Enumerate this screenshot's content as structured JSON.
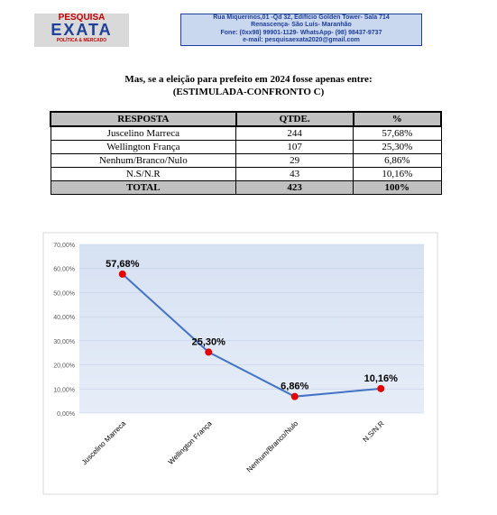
{
  "header": {
    "logo_top": "PESQUISA",
    "logo_main": "EXATA",
    "logo_sub": "POLÍTICA & MERCADO",
    "info": [
      "Rua Miquerinos,01 -Qd 32, Edifício Golden Tower- Sala 714",
      "Renascença- São Luís- Maranhão",
      "Fone: (0xx98) 99901-1129- WhatsApp- (98) 98437-9737",
      "e-mail: pesquisaexata2020@gmail.com"
    ]
  },
  "question": [
    "Mas, se a eleição para prefeito em 2024 fosse apenas entre:",
    "(ESTIMULADA-CONFRONTO C)"
  ],
  "table": {
    "header": [
      "RESPOSTA",
      "QTDE.",
      "%"
    ],
    "rows": [
      [
        "Juscelino Marreca",
        244,
        "57,68%"
      ],
      [
        "Wellington França",
        107,
        "25,30%"
      ],
      [
        "Nenhum/Branco/Nulo",
        29,
        "6,86%"
      ],
      [
        "N.S/N.R",
        43,
        "10,16%"
      ]
    ],
    "total": [
      "TOTAL",
      423,
      "100%"
    ]
  },
  "chart_data": {
    "type": "line",
    "categories": [
      "Juscelino Marreca",
      "Wellington França",
      "Nenhum/Branco/Nulo",
      "N.S/N.R"
    ],
    "values": [
      57.68,
      25.3,
      6.86,
      10.16
    ],
    "value_labels": [
      "57,68%",
      "25,30%",
      "6,86%",
      "10,16%"
    ],
    "color": "#4472c4",
    "marker_color": "#e60000",
    "ylim": [
      0,
      70
    ],
    "yticks": [
      {
        "value": 0,
        "label": "0,00%"
      },
      {
        "value": 10,
        "label": "10,00%"
      },
      {
        "value": 20,
        "label": "20,00%"
      },
      {
        "value": 30,
        "label": "30,00%"
      },
      {
        "value": 40,
        "label": "40,00%"
      },
      {
        "value": 50,
        "label": "50,00%"
      },
      {
        "value": 60,
        "label": "60,00%"
      },
      {
        "value": 70,
        "label": "70,00%"
      }
    ]
  }
}
